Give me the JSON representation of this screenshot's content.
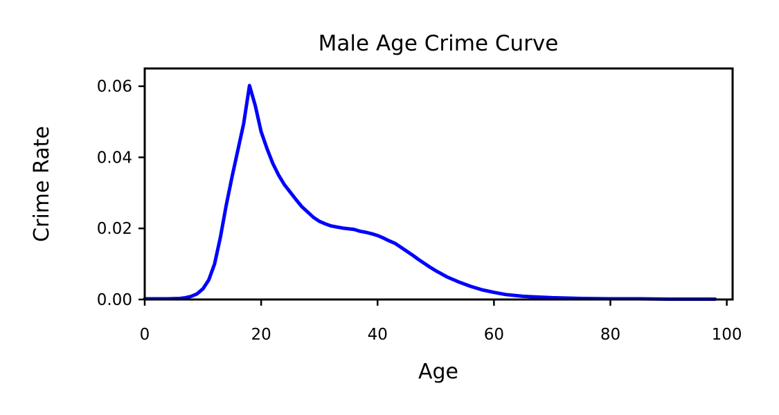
{
  "chart_data": {
    "type": "line",
    "title": "Male Age Crime Curve",
    "xlabel": "Age",
    "ylabel": "Crime Rate",
    "xlim": [
      0,
      101
    ],
    "ylim": [
      0,
      0.065
    ],
    "xticks": [
      0,
      20,
      40,
      60,
      80,
      100
    ],
    "xtick_labels": [
      "0",
      "20",
      "40",
      "60",
      "80",
      "100"
    ],
    "yticks": [
      0.0,
      0.02,
      0.04,
      0.06
    ],
    "ytick_labels": [
      "0.00",
      "0.02",
      "0.04",
      "0.06"
    ],
    "grid": false,
    "series": [
      {
        "color": "#0000ff",
        "x": [
          0,
          2,
          4,
          6,
          7,
          8,
          9,
          10,
          11,
          12,
          13,
          14,
          15,
          16,
          17,
          18,
          19,
          20,
          21,
          22,
          23,
          24,
          25,
          26,
          27,
          28,
          29,
          30,
          31,
          32,
          33,
          34,
          35,
          36,
          37,
          38,
          39,
          40,
          41,
          42,
          43,
          44,
          45,
          46,
          47,
          48,
          49,
          50,
          52,
          54,
          56,
          58,
          60,
          62,
          65,
          70,
          75,
          80,
          85,
          90,
          95,
          98
        ],
        "y": [
          0.0002,
          0.0002,
          0.0002,
          0.0003,
          0.0005,
          0.0009,
          0.0016,
          0.003,
          0.0055,
          0.01,
          0.0175,
          0.0265,
          0.0345,
          0.042,
          0.0495,
          0.0602,
          0.0545,
          0.0472,
          0.0425,
          0.0383,
          0.035,
          0.0323,
          0.0302,
          0.0281,
          0.0261,
          0.0246,
          0.0231,
          0.022,
          0.0213,
          0.0207,
          0.0204,
          0.0201,
          0.0199,
          0.0197,
          0.0192,
          0.0189,
          0.0185,
          0.018,
          0.0173,
          0.0165,
          0.0158,
          0.0147,
          0.0136,
          0.0125,
          0.0113,
          0.0102,
          0.0091,
          0.0081,
          0.0063,
          0.0049,
          0.0037,
          0.0027,
          0.002,
          0.0014,
          0.0009,
          0.0005,
          0.0003,
          0.0002,
          0.0002,
          0.0001,
          0.0001,
          0.0001
        ]
      }
    ]
  }
}
